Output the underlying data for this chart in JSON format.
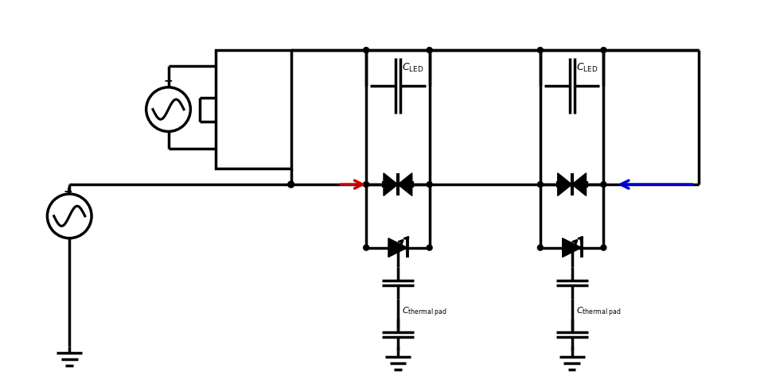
{
  "bg_color": "#ffffff",
  "line_color": "#000000",
  "red_arrow_color": "#cc0000",
  "blue_arrow_color": "#0000cc",
  "line_width": 2.5,
  "fig_width": 9.6,
  "fig_height": 4.92,
  "title": ""
}
